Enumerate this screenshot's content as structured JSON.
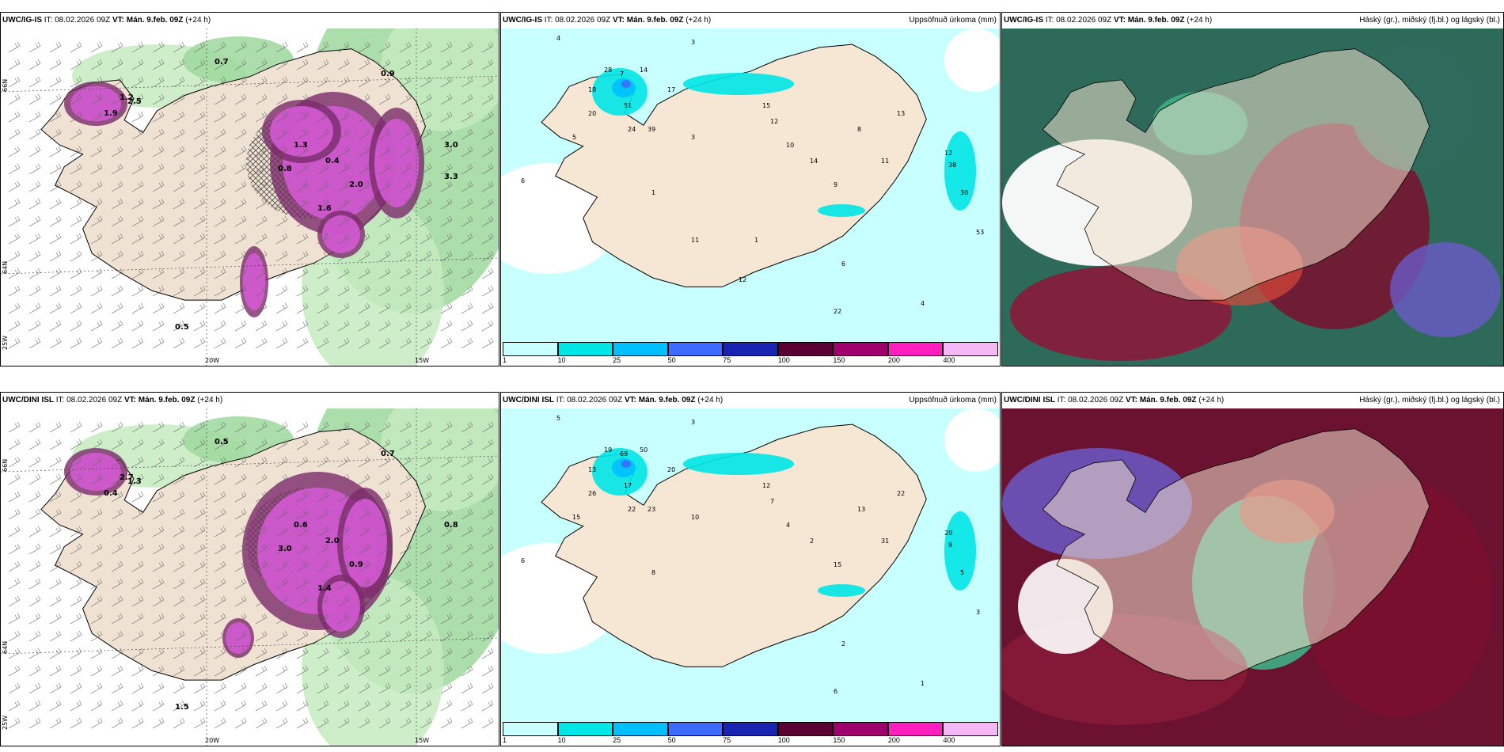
{
  "rows": [
    {
      "model": "UWC/IG-IS",
      "panels": [
        {
          "model": "UWC/IG-IS",
          "it_label": "IT:",
          "it": "08.02.2026 09Z",
          "vt_label": "VT:",
          "vt": "Mán. 9.feb. 09Z",
          "lead": "(+24 h)",
          "title_right": ""
        },
        {
          "model": "UWC/IG-IS",
          "it_label": "IT:",
          "it": "08.02.2026 09Z",
          "vt_label": "VT:",
          "vt": "Mán. 9.feb. 09Z",
          "lead": "(+24 h)",
          "title_right": "Uppsöfnuð úrkoma (mm)"
        },
        {
          "model": "UWC/IG-IS",
          "it_label": "IT:",
          "it": "08.02.2026 09Z",
          "vt_label": "VT:",
          "vt": "Mán. 9.feb. 09Z",
          "lead": "(+24 h)",
          "title_right": "Háský (gr.), miðský (fj.bl.) og lágský (bl.)"
        }
      ],
      "lon_labels": [
        "20W",
        "15W"
      ],
      "lat_labels": [
        "66N",
        "64N"
      ],
      "corner_label": "25W",
      "precip_numbers": [
        "4",
        "3",
        "6",
        "28",
        "7",
        "14",
        "51",
        "17",
        "20",
        "5",
        "18",
        "24",
        "39",
        "3",
        "1",
        "15",
        "12",
        "10",
        "14",
        "9",
        "8",
        "11",
        "13",
        "12",
        "38",
        "30",
        "53",
        "22",
        "6",
        "4",
        "11",
        "12",
        "1"
      ],
      "snow_numbers": [
        "0.7",
        "0.9",
        "0.5",
        "1.2",
        "2.5",
        "3.0",
        "1.9",
        "1.6",
        "2.0",
        "1.3",
        "0.8",
        "0.4",
        "3.3"
      ]
    },
    {
      "model": "UWC/DINI ISL",
      "panels": [
        {
          "model": "UWC/DINI ISL",
          "it_label": "IT:",
          "it": "08.02.2026 09Z",
          "vt_label": "VT:",
          "vt": "Mán. 9.feb. 09Z",
          "lead": "(+24 h)",
          "title_right": ""
        },
        {
          "model": "UWC/DINI ISL",
          "it_label": "IT:",
          "it": "08.02.2026 09Z",
          "vt_label": "VT:",
          "vt": "Mán. 9.feb. 09Z",
          "lead": "(+24 h)",
          "title_right": "Uppsöfnuð úrkoma (mm)"
        },
        {
          "model": "UWC/DINI ISL",
          "it_label": "IT:",
          "it": "08.02.2026 09Z",
          "vt_label": "VT:",
          "vt": "Mán. 9.feb. 09Z",
          "lead": "(+24 h)",
          "title_right": "Háský (gr.), miðský (fj.bl.) og lágský (bl.)"
        }
      ],
      "lon_labels": [
        "20W",
        "15W"
      ],
      "lat_labels": [
        "66N",
        "64N"
      ],
      "corner_label": "25W",
      "precip_numbers": [
        "5",
        "3",
        "6",
        "19",
        "68",
        "50",
        "17",
        "20",
        "26",
        "15",
        "13",
        "22",
        "23",
        "10",
        "8",
        "12",
        "7",
        "4",
        "2",
        "15",
        "13",
        "31",
        "22",
        "20",
        "9",
        "5",
        "3",
        "6",
        "2",
        "1"
      ],
      "snow_numbers": [
        "0.5",
        "0.7",
        "1.5",
        "2.7",
        "1.3",
        "0.8",
        "0.4",
        "1.4",
        "0.9",
        "0.6",
        "3.0",
        "2.0"
      ]
    }
  ],
  "colorbar": {
    "labels": [
      "1",
      "10",
      "25",
      "50",
      "75",
      "100",
      "150",
      "200",
      "400"
    ],
    "colors": [
      "#c8ffff",
      "#00e6e6",
      "#00bfff",
      "#3d6bff",
      "#1a24b3",
      "#5a0032",
      "#a0006e",
      "#ff1fbf",
      "#f5b8f5"
    ]
  }
}
